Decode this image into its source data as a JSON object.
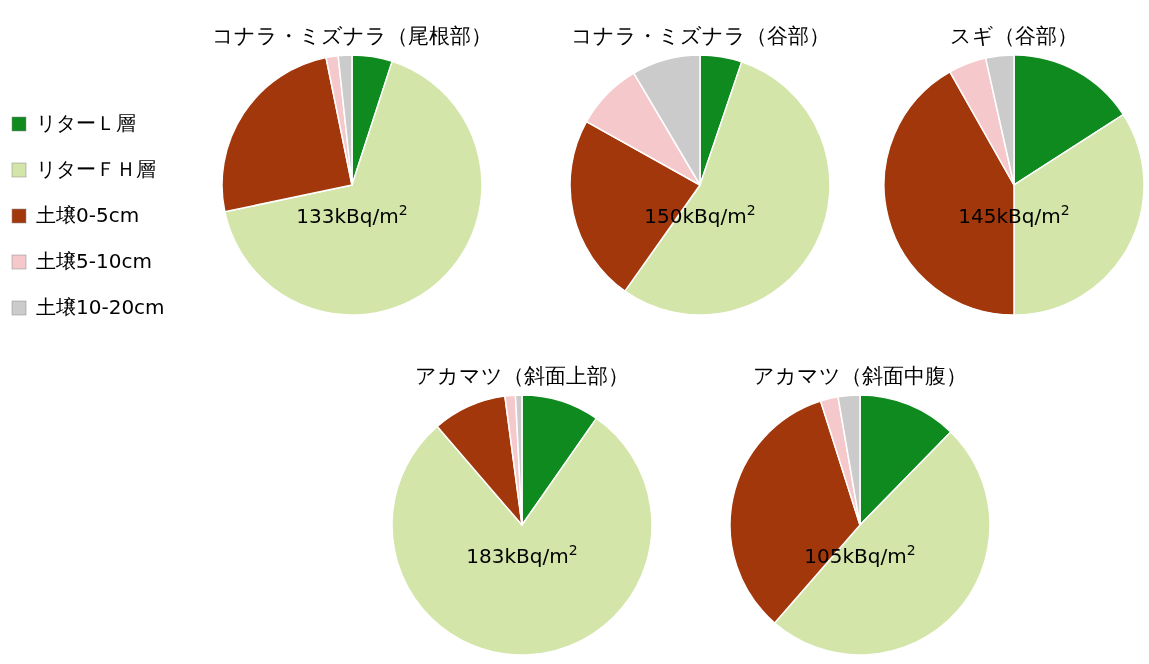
{
  "chart_data": [
    {
      "type": "pie",
      "title": "コナラ・ミズナラ（尾根部）",
      "categories": [
        "リターＬ層",
        "リターＦＨ層",
        "土壌0-5cm",
        "土壌5-10cm",
        "土壌10-20cm"
      ],
      "values": [
        5.0,
        66.7,
        25.1,
        1.5,
        1.7
      ],
      "colors": [
        "#0f8a1e",
        "#d3e5a8",
        "#a3370c",
        "#f5c9cb",
        "#cbcbcb"
      ],
      "annotations": [
        "133kBq/m$^{2}$"
      ],
      "legend": "left"
    },
    {
      "type": "pie",
      "title": "コナラ・ミズナラ（谷部）",
      "categories": [
        null,
        null,
        null,
        null,
        null
      ],
      "values": [
        5.2,
        54.6,
        23.3,
        8.4,
        8.5
      ],
      "colors": [
        "#0f8a1e",
        "#d3e5a8",
        "#a3370c",
        "#f5c9cb",
        "#cbcbcb"
      ],
      "annotations": [
        "150kBq/m$^{2}$"
      ]
    },
    {
      "type": "pie",
      "title": "スギ（谷部）",
      "categories": [
        null,
        null,
        null,
        null,
        null
      ],
      "values": [
        15.9,
        34.1,
        41.8,
        4.7,
        3.5
      ],
      "colors": [
        "#0f8a1e",
        "#d3e5a8",
        "#a3370c",
        "#f5c9cb",
        "#cbcbcb"
      ],
      "annotations": [
        "145kBq/m$^{2}$"
      ]
    },
    {
      "type": "pie",
      "title": "アカマツ（斜面上部）",
      "categories": [
        null,
        null,
        null,
        null,
        null
      ],
      "values": [
        9.7,
        79.0,
        9.2,
        1.3,
        0.8
      ],
      "colors": [
        "#0f8a1e",
        "#d3e5a8",
        "#a3370c",
        "#f5c9cb",
        "#cbcbcb"
      ],
      "annotations": [
        "183kBq/m$^{2}$"
      ]
    },
    {
      "type": "pie",
      "title": "アカマツ（斜面中腹）",
      "categories": [
        null,
        null,
        null,
        null,
        null
      ],
      "values": [
        12.3,
        49.1,
        33.7,
        2.2,
        2.7
      ],
      "colors": [
        "#0f8a1e",
        "#d3e5a8",
        "#a3370c",
        "#f5c9cb",
        "#cbcbcb"
      ],
      "annotations": [
        "105kBq/m$^{2}$"
      ]
    }
  ]
}
